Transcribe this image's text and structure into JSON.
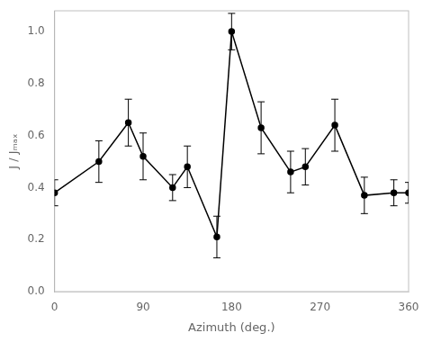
{
  "chart_data": {
    "type": "line",
    "x": [
      0,
      45,
      75,
      90,
      120,
      135,
      165,
      180,
      210,
      240,
      255,
      285,
      315,
      345,
      360
    ],
    "values": [
      0.38,
      0.5,
      0.65,
      0.52,
      0.4,
      0.48,
      0.21,
      1.0,
      0.63,
      0.46,
      0.48,
      0.64,
      0.37,
      0.38,
      0.38
    ],
    "yerr_lower": [
      0.05,
      0.08,
      0.09,
      0.09,
      0.05,
      0.08,
      0.08,
      0.07,
      0.1,
      0.08,
      0.07,
      0.1,
      0.07,
      0.05,
      0.04
    ],
    "yerr_upper": [
      0.05,
      0.08,
      0.09,
      0.09,
      0.05,
      0.08,
      0.08,
      0.07,
      0.1,
      0.08,
      0.07,
      0.1,
      0.07,
      0.05,
      0.04
    ],
    "xlabel": "Azimuth (deg.)",
    "ylabel": "J / Jₘₐₓ",
    "xlim": [
      0,
      360
    ],
    "ylim": [
      0,
      1.08
    ],
    "xticks": [
      0,
      90,
      180,
      270,
      360
    ],
    "yticks": [
      {
        "value": 0,
        "label": "0.0"
      },
      0.2,
      0.4,
      0.6,
      0.8,
      {
        "value": 1.0,
        "label": "1.0"
      }
    ],
    "color": "#000000",
    "marker": "circle",
    "grid": false
  }
}
